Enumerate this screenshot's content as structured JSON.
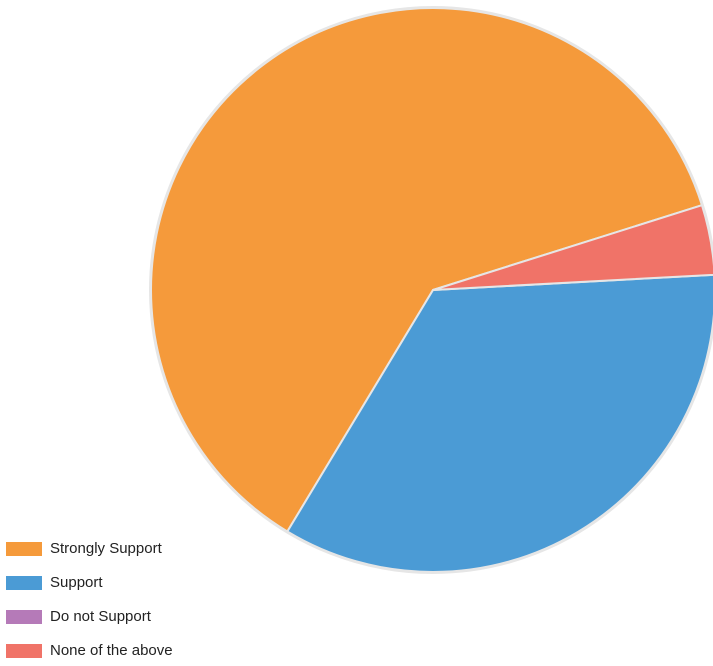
{
  "chart_data": {
    "type": "pie",
    "categories": [
      "Strongly Support",
      "Support",
      "Do not Support",
      "None of the above"
    ],
    "values": [
      61.5,
      34.5,
      0.0,
      4.0
    ],
    "colors": [
      "#f59a3b",
      "#4b9bd5",
      "#b57ab8",
      "#f07368"
    ],
    "start_angle_deg": -17.5,
    "direction": "counterclockwise",
    "slice_border_color": "#e6e6e6",
    "legend_position": "bottom-left",
    "title": ""
  }
}
